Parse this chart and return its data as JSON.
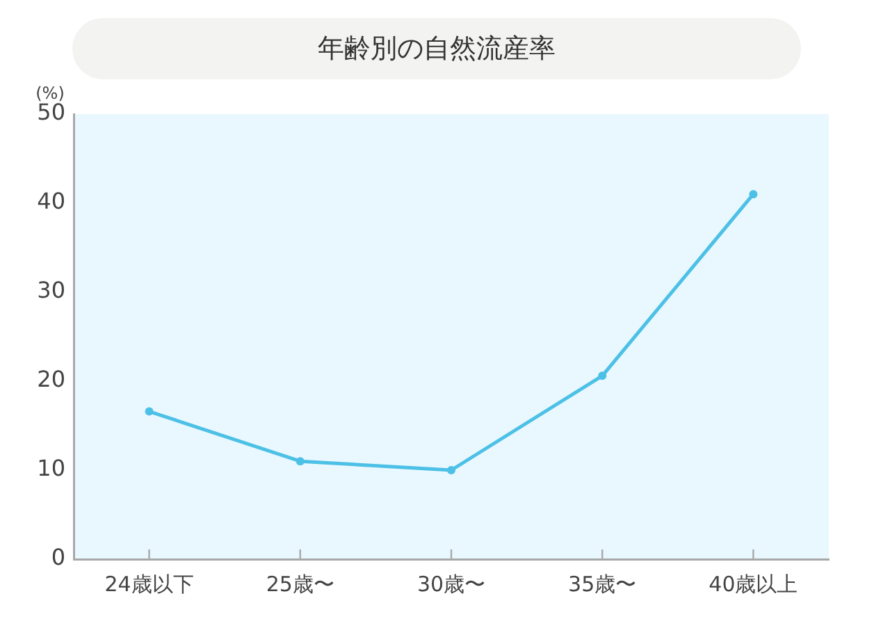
{
  "chart_data": {
    "type": "line",
    "title": "年齢別の自然流産率",
    "ylabel": "(%)",
    "categories": [
      "24歳以下",
      "25歳〜",
      "30歳〜",
      "35歳〜",
      "40歳以上"
    ],
    "series": [
      {
        "color": "#4cc0e6",
        "values": [
          16.6,
          11,
          10,
          20.6,
          41
        ]
      }
    ],
    "ylim": [
      0,
      50
    ],
    "yticks": [
      0,
      10,
      20,
      30,
      40,
      50
    ],
    "grid": false,
    "legend": false,
    "marker": "circle",
    "line_style": "solid"
  }
}
